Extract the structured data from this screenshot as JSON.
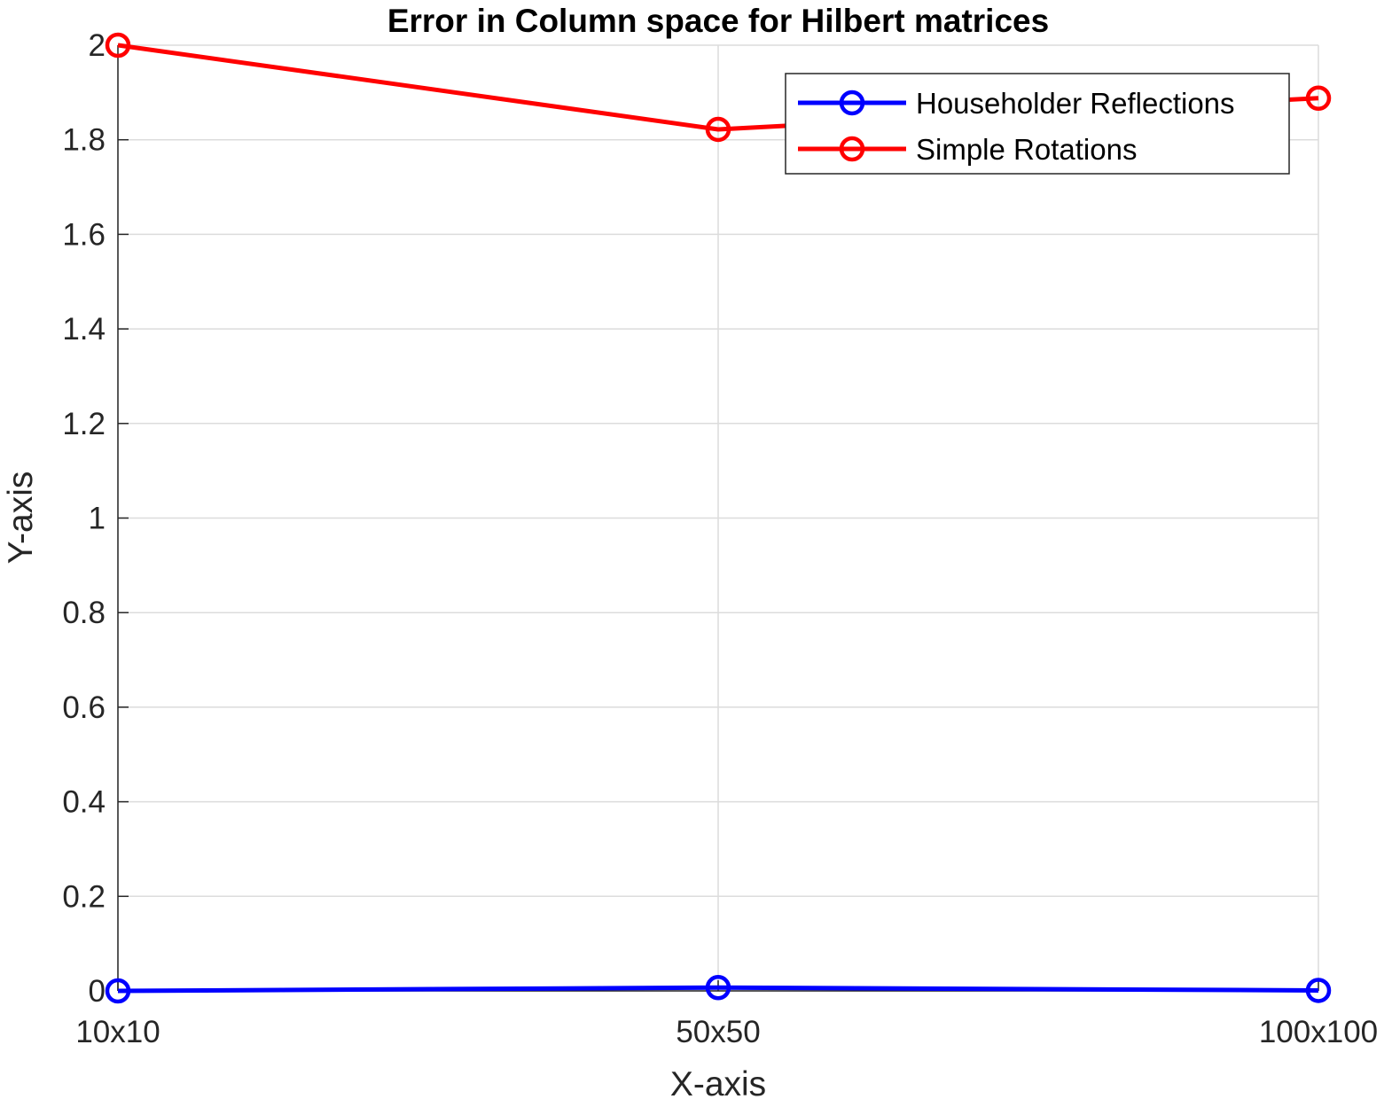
{
  "chart_data": {
    "type": "line",
    "title": "Error in Column space for Hilbert matrices",
    "xlabel": "X-axis",
    "ylabel": "Y-axis",
    "categories": [
      "10x10",
      "50x50",
      "100x100"
    ],
    "ylim": [
      0,
      2
    ],
    "yticks": [
      0,
      0.2,
      0.4,
      0.6,
      0.8,
      1,
      1.2,
      1.4,
      1.6,
      1.8,
      2
    ],
    "ytick_labels": [
      "0",
      "0.2",
      "0.4",
      "0.6",
      "0.8",
      "1",
      "1.2",
      "1.4",
      "1.6",
      "1.8",
      "2"
    ],
    "grid": true,
    "legend_position": "top-right",
    "series": [
      {
        "name": "Householder Reflections",
        "color": "#0000ff",
        "marker": "circle",
        "values": [
          0.0,
          0.007,
          0.001
        ]
      },
      {
        "name": "Simple Rotations",
        "color": "#ff0000",
        "marker": "circle",
        "values": [
          2.0,
          1.822,
          1.888
        ]
      }
    ]
  }
}
